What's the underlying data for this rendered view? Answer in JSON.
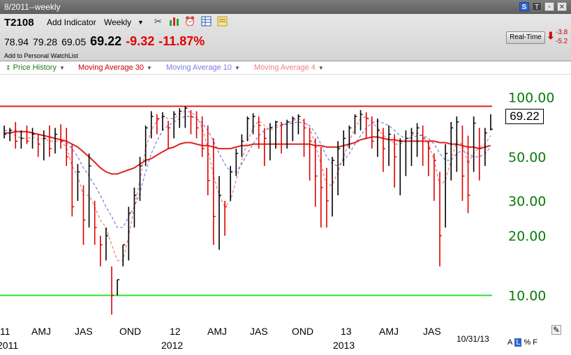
{
  "window": {
    "title": "8/2011--weekly"
  },
  "toolbar": {
    "symbol": "T2108",
    "add_indicator": "Add Indicator",
    "period": "Weekly",
    "icons": [
      "tools-icon",
      "chart-style-icon",
      "alarm-icon",
      "table-icon",
      "note-icon"
    ]
  },
  "quote": {
    "open": "78.94",
    "high": "79.28",
    "low": "69.05",
    "last": "69.22",
    "change": "-9.32",
    "change_pct": "-11.87%",
    "add_watchlist": "Add to Personal WatchList"
  },
  "realtime": {
    "label": "Real-Time",
    "value1": "-3.8",
    "value2": "-5.2"
  },
  "legend": {
    "items": [
      {
        "label": "Price History",
        "color": "#1a7a1a"
      },
      {
        "label": "Moving Average 30",
        "color": "#cc0000"
      },
      {
        "label": "Moving Average 10",
        "color": "#7b7be0"
      },
      {
        "label": "Moving Average 4",
        "color": "#f08080"
      }
    ]
  },
  "chart": {
    "last_label": "69.22",
    "date_label": "10/31/13",
    "scale_buttons": [
      "A",
      "L",
      "%",
      "F"
    ]
  },
  "chart_data": {
    "type": "line",
    "scale": "log",
    "ylim": [
      7.5,
      130
    ],
    "y_ticks": [
      "100.00",
      "50.00",
      "30.00",
      "20.00",
      "10.00"
    ],
    "y_tick_values": [
      100,
      50,
      30,
      20,
      10
    ],
    "x_tick_labels": [
      "11",
      "AMJ",
      "JAS",
      "OND",
      "12",
      "AMJ",
      "JAS",
      "OND",
      "13",
      "AMJ",
      "JAS"
    ],
    "year_labels": [
      "2011",
      "2012",
      "2013"
    ],
    "overlays": [
      {
        "name": "Resistance",
        "value": 90,
        "color": "#e02020"
      },
      {
        "name": "Support",
        "value": 10,
        "color": "#33dd33"
      }
    ],
    "series": [
      {
        "name": "Price History",
        "kind": "hl_bars",
        "high": [
          72,
          70,
          75,
          68,
          72,
          70,
          65,
          68,
          72,
          70,
          73,
          70,
          58,
          46,
          36,
          52,
          30,
          20,
          22,
          14,
          12,
          18,
          28,
          35,
          50,
          72,
          85,
          82,
          84,
          76,
          85,
          88,
          90,
          86,
          85,
          80,
          72,
          62,
          40,
          30,
          45,
          55,
          65,
          80,
          83,
          80,
          70,
          74,
          76,
          75,
          77,
          80,
          82,
          78,
          70,
          62,
          56,
          44,
          50,
          60,
          68,
          72,
          82,
          86,
          84,
          80,
          78,
          70,
          72,
          65,
          62,
          68,
          70,
          74,
          72,
          60,
          52,
          42,
          58,
          75,
          80,
          72,
          64,
          80,
          70,
          70,
          82
        ],
        "low": [
          62,
          60,
          55,
          55,
          58,
          55,
          50,
          48,
          50,
          52,
          55,
          45,
          25,
          30,
          18,
          22,
          18,
          14,
          15,
          8,
          10,
          14,
          15,
          22,
          30,
          45,
          62,
          65,
          68,
          55,
          62,
          70,
          70,
          65,
          62,
          50,
          32,
          18,
          17,
          20,
          30,
          40,
          50,
          60,
          65,
          55,
          45,
          48,
          55,
          52,
          55,
          60,
          65,
          50,
          38,
          28,
          22,
          22,
          25,
          32,
          45,
          55,
          65,
          68,
          62,
          55,
          50,
          42,
          45,
          35,
          32,
          40,
          45,
          50,
          45,
          40,
          30,
          14,
          22,
          38,
          42,
          30,
          26,
          42,
          38,
          45,
          68
        ],
        "close": [
          65,
          68,
          60,
          62,
          60,
          65,
          58,
          62,
          55,
          65,
          60,
          50,
          28,
          42,
          24,
          45,
          22,
          18,
          20,
          10,
          12,
          18,
          26,
          32,
          45,
          70,
          80,
          78,
          80,
          70,
          82,
          85,
          88,
          80,
          70,
          55,
          38,
          25,
          32,
          28,
          42,
          52,
          60,
          78,
          80,
          72,
          62,
          70,
          75,
          73,
          75,
          78,
          80,
          70,
          60,
          40,
          35,
          30,
          48,
          55,
          62,
          70,
          80,
          82,
          78,
          60,
          68,
          55,
          65,
          50,
          60,
          62,
          66,
          70,
          62,
          55,
          48,
          20,
          52,
          70,
          75,
          40,
          32,
          74,
          55,
          66,
          69
        ]
      },
      {
        "name": "Moving Average 30",
        "kind": "line",
        "color": "#dd2222",
        "values": [
          66,
          66,
          67,
          67,
          67,
          66,
          65,
          64,
          63,
          62,
          61,
          60,
          58,
          56,
          53,
          50,
          47,
          44,
          42,
          41,
          41,
          42,
          43,
          44,
          46,
          48,
          49,
          51,
          53,
          55,
          56,
          58,
          59,
          59,
          58,
          57,
          57,
          56,
          55,
          55,
          55,
          56,
          57,
          57,
          58,
          58,
          58,
          58,
          58,
          58,
          58,
          58,
          58,
          58,
          58,
          57,
          57,
          56,
          56,
          56,
          57,
          58,
          59,
          61,
          62,
          63,
          63,
          62,
          61,
          61,
          60,
          60,
          60,
          60,
          60,
          60,
          60,
          59,
          59,
          58,
          58,
          57,
          56,
          56,
          55,
          56,
          57
        ]
      },
      {
        "name": "Moving Average 10",
        "kind": "line",
        "color": "#7878e0",
        "values": [
          68,
          68,
          68,
          67,
          67,
          66,
          65,
          64,
          63,
          62,
          61,
          59,
          55,
          50,
          44,
          40,
          36,
          32,
          28,
          25,
          22,
          22,
          25,
          28,
          33,
          42,
          52,
          60,
          68,
          72,
          75,
          78,
          80,
          80,
          78,
          74,
          68,
          60,
          52,
          46,
          42,
          42,
          46,
          52,
          58,
          64,
          68,
          70,
          72,
          72,
          73,
          74,
          75,
          74,
          72,
          66,
          58,
          50,
          46,
          45,
          48,
          52,
          58,
          64,
          70,
          74,
          76,
          74,
          72,
          68,
          64,
          62,
          62,
          64,
          64,
          62,
          58,
          52,
          48,
          48,
          52,
          54,
          52,
          50,
          50,
          52,
          56
        ]
      },
      {
        "name": "Moving Average 4",
        "kind": "line",
        "color": "#f07878",
        "values": [
          66,
          66,
          64,
          62,
          62,
          63,
          61,
          62,
          60,
          60,
          60,
          56,
          45,
          40,
          32,
          32,
          28,
          24,
          22,
          18,
          15,
          15,
          20,
          28,
          38,
          55,
          68,
          76,
          80,
          78,
          78,
          82,
          85,
          84,
          80,
          70,
          55,
          40,
          32,
          28,
          30,
          38,
          48,
          60,
          70,
          76,
          72,
          68,
          70,
          72,
          74,
          76,
          78,
          76,
          70,
          58,
          46,
          36,
          36,
          42,
          50,
          60,
          70,
          78,
          80,
          75,
          70,
          64,
          62,
          58,
          58,
          60,
          64,
          66,
          64,
          58,
          48,
          36,
          38,
          48,
          60,
          58,
          46,
          52,
          56,
          58,
          64
        ]
      }
    ]
  }
}
